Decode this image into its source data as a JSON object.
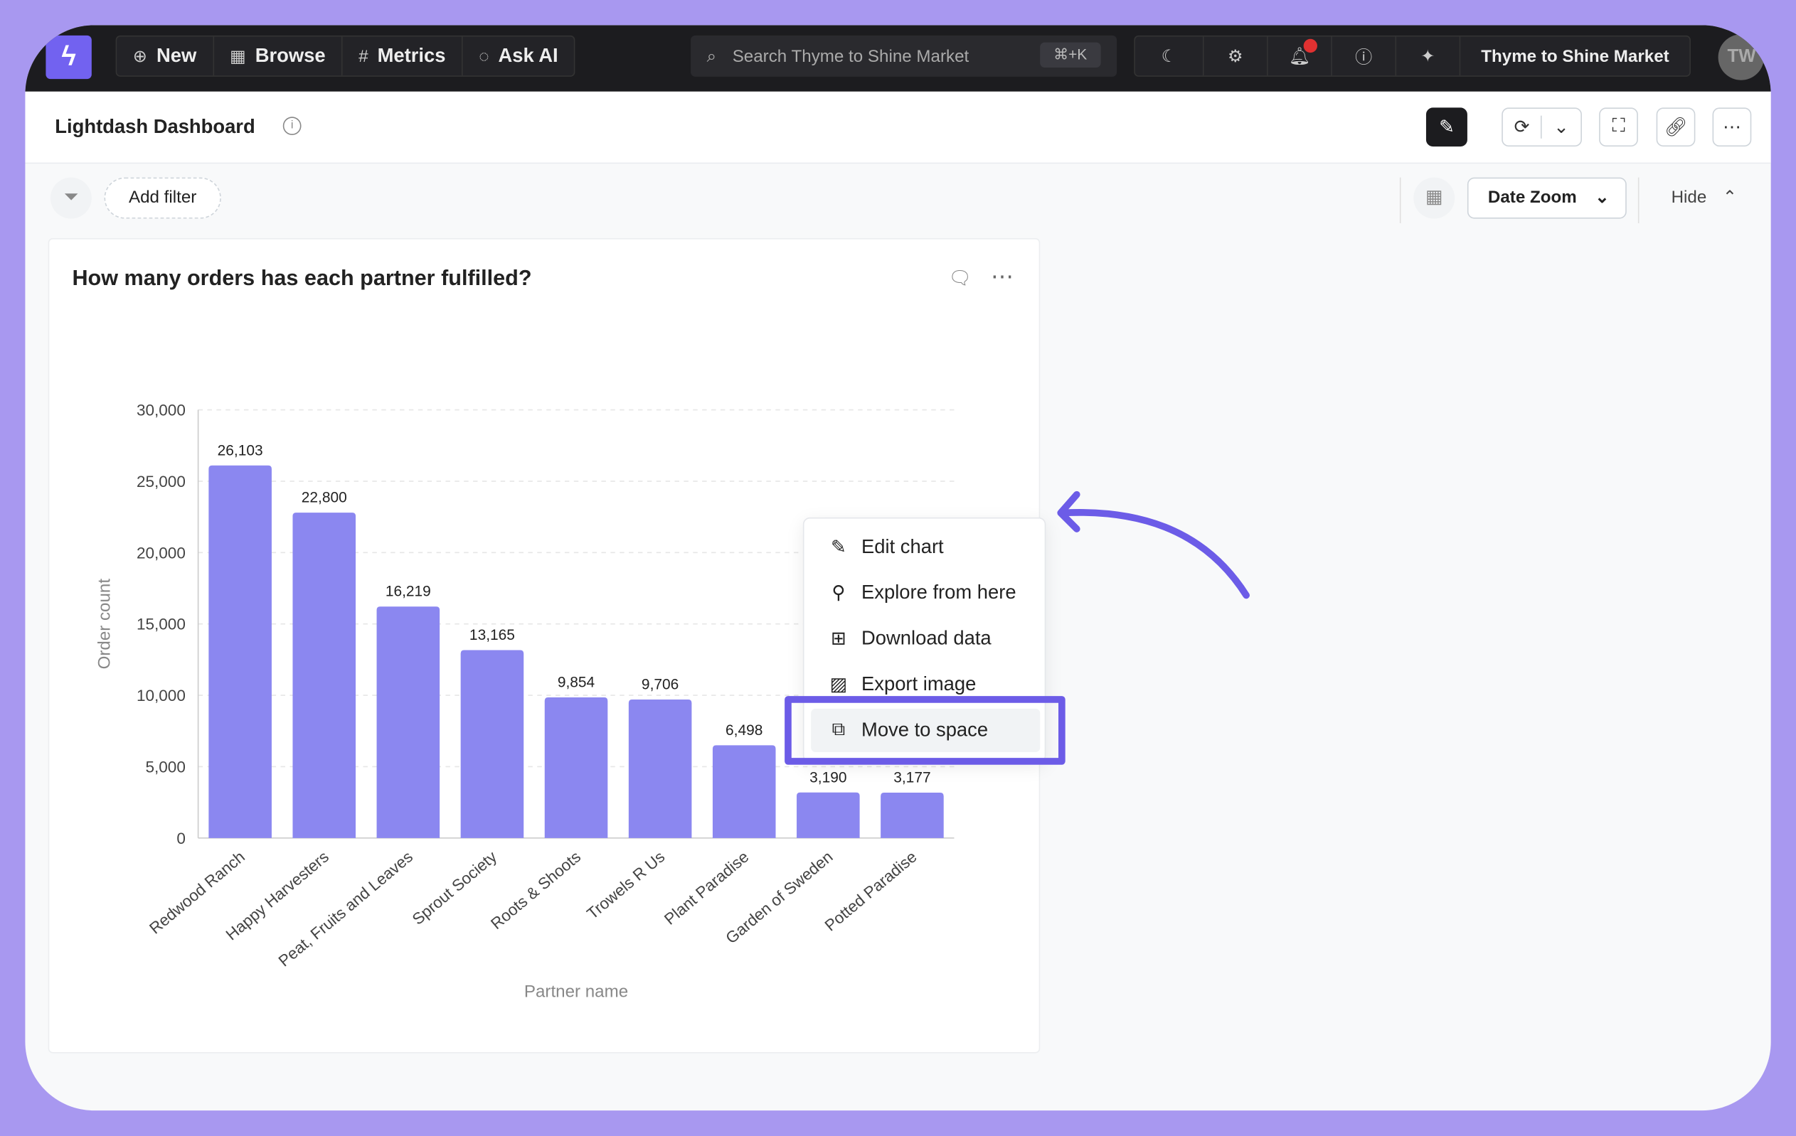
{
  "nav": {
    "items": [
      {
        "label": "New",
        "icon": "plus-circle-icon"
      },
      {
        "label": "Browse",
        "icon": "grid-icon"
      },
      {
        "label": "Metrics",
        "icon": "hash-icon"
      },
      {
        "label": "Ask AI",
        "icon": "ai-chat-icon"
      }
    ],
    "search_placeholder": "Search Thyme to Shine Market",
    "shortcut": "⌘+K",
    "project": "Thyme to Shine Market",
    "avatar": "TW"
  },
  "header": {
    "title": "Lightdash Dashboard"
  },
  "filters": {
    "add_filter": "Add filter",
    "date_zoom": "Date Zoom",
    "hide": "Hide"
  },
  "card": {
    "title": "How many orders has each partner fulfilled?"
  },
  "menu": {
    "items": [
      "Edit chart",
      "Explore from here",
      "Download data",
      "Export image",
      "Move to space"
    ],
    "highlighted": "Move to space"
  },
  "colors": {
    "bar": "#8b87f0",
    "accent": "#6c5ce7",
    "nav": "#1c1c1f"
  },
  "chart_data": {
    "type": "bar",
    "xlabel": "Partner name",
    "ylabel": "Order count",
    "ylim": [
      0,
      30000
    ],
    "yticks": [
      "0",
      "5,000",
      "10,000",
      "15,000",
      "20,000",
      "25,000",
      "30,000"
    ],
    "categories": [
      "Redwood Ranch",
      "Happy Harvesters",
      "Peat, Fruits and Leaves",
      "Sprout Society",
      "Roots & Shoots",
      "Trowels R Us",
      "Plant Paradise",
      "Garden of Sweden",
      "Potted Paradise"
    ],
    "values": [
      26103,
      22800,
      16219,
      13165,
      9854,
      9706,
      6498,
      3190,
      3177
    ],
    "labels": [
      "26,103",
      "22,800",
      "16,219",
      "13,165",
      "9,854",
      "9,706",
      "6,498",
      "3,190",
      "3,177"
    ],
    "grid": true
  }
}
